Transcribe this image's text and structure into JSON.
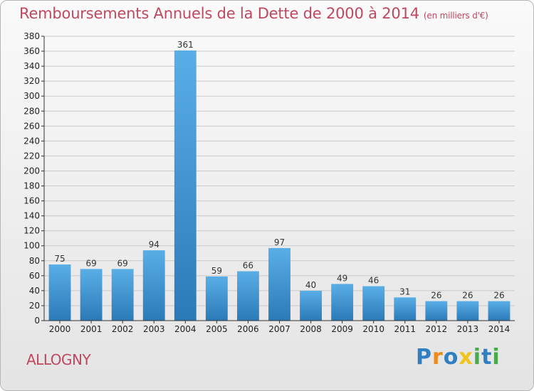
{
  "chart_data": {
    "type": "bar",
    "title": "Remboursements Annuels de la Dette de 2000 à 2014",
    "subtitle": "(en milliers d'€)",
    "categories": [
      "2000",
      "2001",
      "2002",
      "2003",
      "2004",
      "2005",
      "2006",
      "2007",
      "2008",
      "2009",
      "2010",
      "2011",
      "2012",
      "2013",
      "2014"
    ],
    "values": [
      75,
      69,
      69,
      94,
      361,
      59,
      66,
      97,
      40,
      49,
      46,
      31,
      26,
      26,
      26
    ],
    "ylim": [
      0,
      380
    ],
    "yticks": [
      0,
      20,
      40,
      60,
      80,
      100,
      120,
      140,
      160,
      180,
      200,
      220,
      240,
      260,
      280,
      300,
      320,
      340,
      360,
      380
    ],
    "grid": true,
    "colors": {
      "bar_top": "#5aaee6",
      "bar_bottom": "#2a7ab8",
      "title": "#c0485e",
      "grid": "#c9c9c9",
      "axis": "#333333"
    }
  },
  "footer": {
    "commune": "ALLOGNY"
  },
  "logo": {
    "letters": [
      "P",
      "r",
      "o",
      "x",
      "i",
      "t",
      "i"
    ],
    "colors": [
      "#2f7fc1",
      "#f08a1c",
      "#2f7fc1",
      "#f0c419",
      "#4aa94a",
      "#2f7fc1",
      "#4aa94a"
    ]
  }
}
